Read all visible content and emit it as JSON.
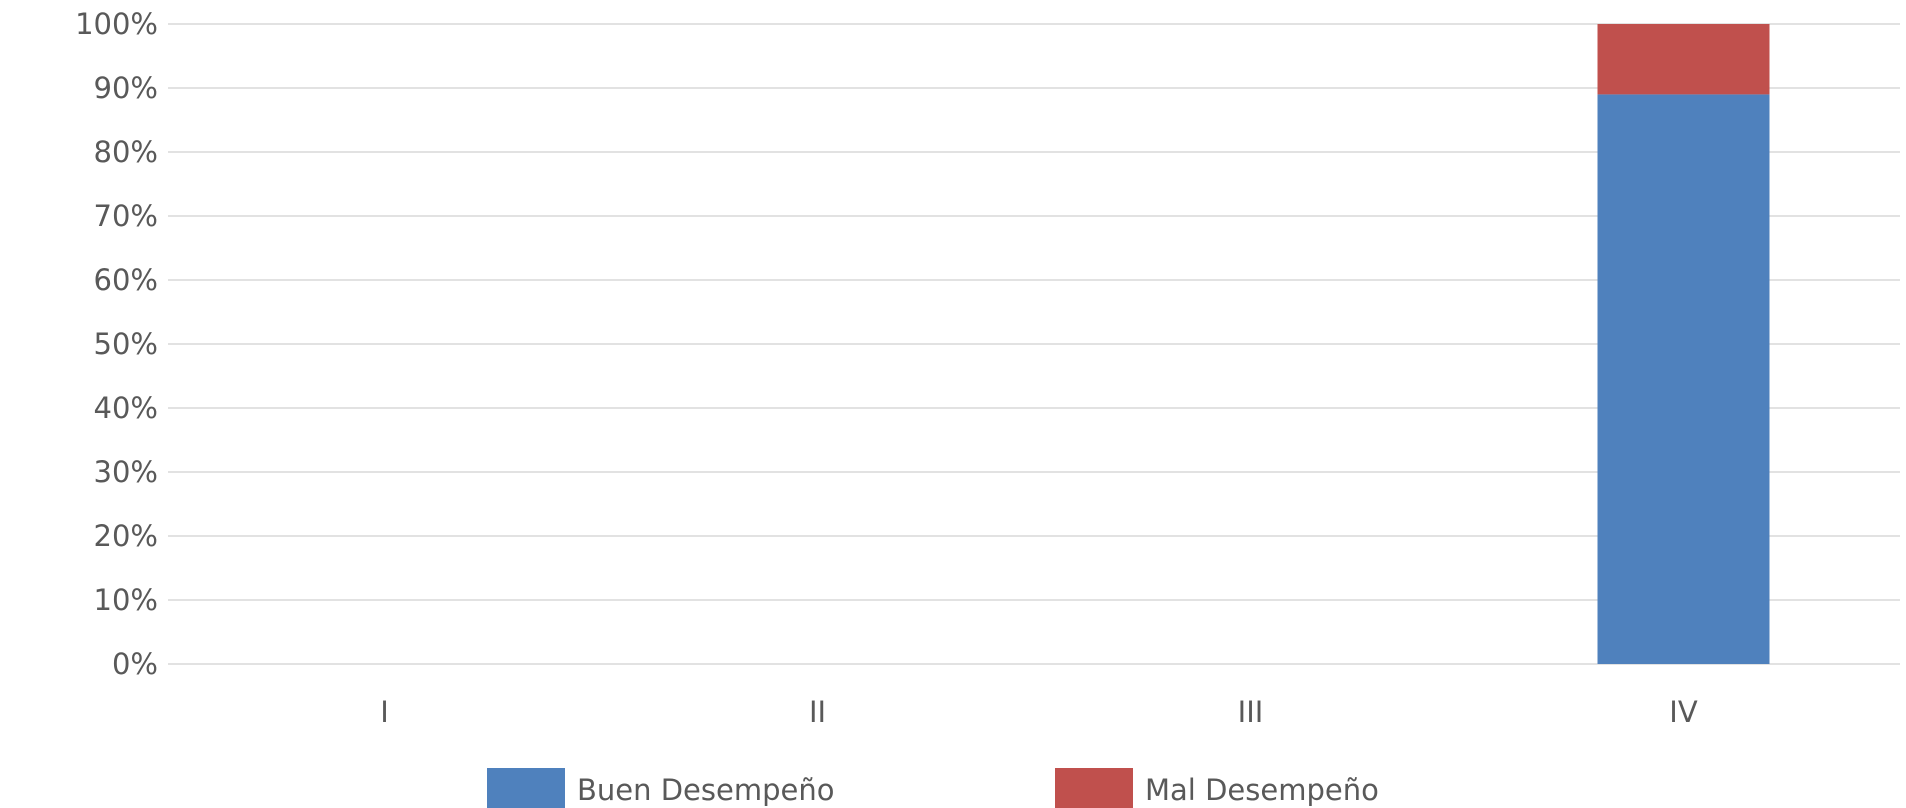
{
  "chart_data": {
    "type": "bar",
    "stacked": true,
    "categories": [
      "I",
      "II",
      "III",
      "IV"
    ],
    "series": [
      {
        "name": "Buen Desempeño",
        "color": "#4f81bd",
        "values": [
          0,
          0,
          0,
          89
        ]
      },
      {
        "name": "Mal Desempeño",
        "color": "#c0504d",
        "values": [
          0,
          0,
          0,
          11
        ]
      }
    ],
    "yticks": [
      "0%",
      "10%",
      "20%",
      "30%",
      "40%",
      "50%",
      "60%",
      "70%",
      "80%",
      "90%",
      "100%"
    ],
    "ylim": [
      0,
      100
    ],
    "yunit": "%",
    "grid": true,
    "legend_position": "bottom"
  }
}
